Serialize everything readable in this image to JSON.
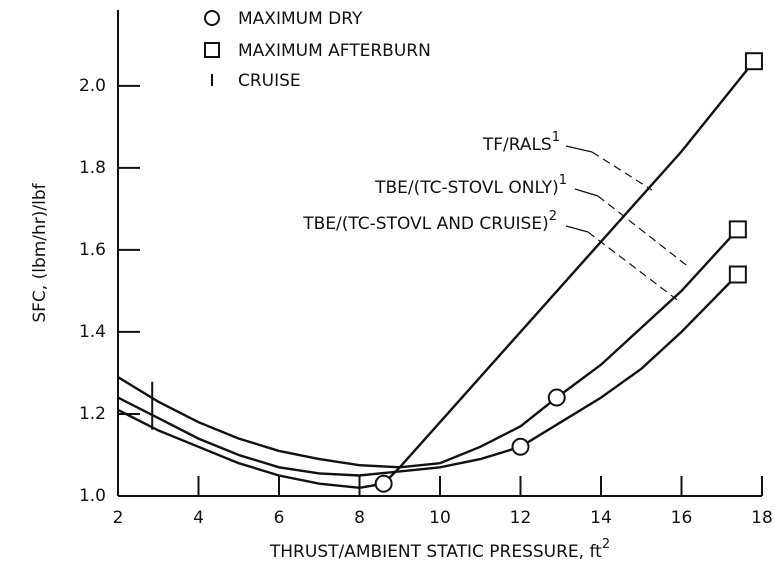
{
  "chart_data": {
    "type": "line",
    "xlabel": {
      "text": "THRUST/AMBIENT STATIC PRESSURE, ft",
      "sup": "2"
    },
    "ylabel": "SFC, (lbm/hr)/lbf",
    "xlim": [
      2,
      18
    ],
    "ylim": [
      1.0,
      2.18
    ],
    "xticks": [
      2,
      4,
      6,
      8,
      10,
      12,
      14,
      16,
      18
    ],
    "yticks": [
      {
        "value": 1.0,
        "label": "1.0"
      },
      1.2,
      1.4,
      1.6,
      1.8,
      {
        "value": 2.0,
        "label": "2.0"
      }
    ],
    "series": [
      {
        "name": {
          "text": "TF/RALS",
          "sup": "1"
        },
        "color": "#111111",
        "x": [
          2,
          3,
          4,
          5,
          6,
          7,
          8,
          8.6,
          9,
          10,
          12,
          14,
          16,
          17.8
        ],
        "values": [
          1.21,
          1.16,
          1.12,
          1.08,
          1.05,
          1.03,
          1.02,
          1.03,
          1.07,
          1.18,
          1.4,
          1.62,
          1.84,
          2.06
        ]
      },
      {
        "name": {
          "text": "TBE/(TC-STOVL ONLY)",
          "sup": "1"
        },
        "color": "#111111",
        "x": [
          2,
          3,
          4,
          5,
          6,
          7,
          8,
          9,
          10,
          11,
          12,
          12.9,
          14,
          15,
          16,
          17.4
        ],
        "values": [
          1.29,
          1.23,
          1.18,
          1.14,
          1.11,
          1.09,
          1.075,
          1.07,
          1.08,
          1.12,
          1.17,
          1.24,
          1.32,
          1.41,
          1.5,
          1.65
        ]
      },
      {
        "name": {
          "text": "TBE/(TC-STOVL AND CRUISE)",
          "sup": "2"
        },
        "color": "#111111",
        "x": [
          2,
          3,
          4,
          5,
          6,
          7,
          8,
          9,
          10,
          11,
          12,
          13,
          14,
          15,
          16,
          17.4
        ],
        "values": [
          1.24,
          1.19,
          1.14,
          1.1,
          1.07,
          1.055,
          1.05,
          1.06,
          1.07,
          1.09,
          1.12,
          1.18,
          1.24,
          1.31,
          1.4,
          1.54
        ]
      }
    ],
    "markers": [
      {
        "name": "MAXIMUM DRY",
        "shape": "circle",
        "x": [
          8.6,
          12,
          12.9
        ],
        "values": [
          1.03,
          1.12,
          1.24
        ]
      },
      {
        "name": "MAXIMUM AFTERBURN",
        "shape": "square",
        "x": [
          17.8,
          17.4,
          17.4
        ],
        "values": [
          2.06,
          1.65,
          1.54
        ]
      },
      {
        "name": "CRUISE",
        "shape": "bar",
        "x": [
          2.85
        ],
        "values": [
          1.22
        ]
      }
    ]
  }
}
